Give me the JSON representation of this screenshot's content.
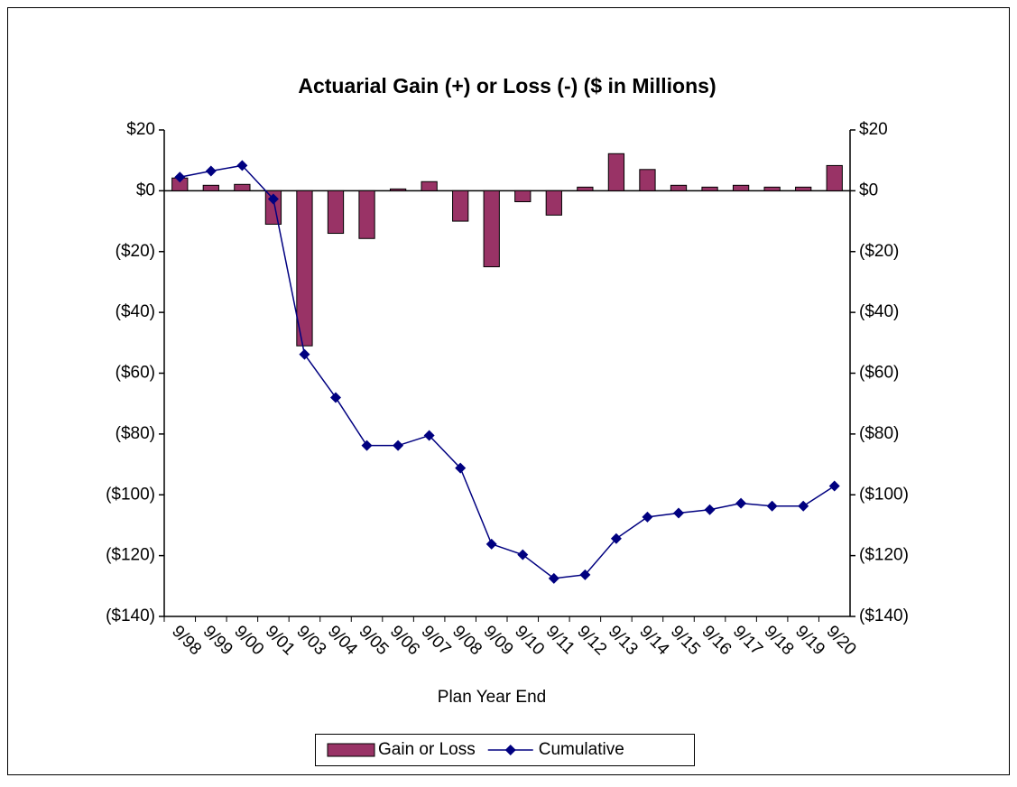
{
  "chart_data": {
    "type": "bar_line",
    "title": "Actuarial Gain (+) or Loss (-)  ($ in Millions)",
    "x_label": "Plan Year End",
    "categories": [
      "9/98",
      "9/99",
      "9/00",
      "9/01",
      "9/03",
      "9/04",
      "9/05",
      "9/06",
      "9/07",
      "9/08",
      "9/09",
      "9/10",
      "9/11",
      "9/12",
      "9/13",
      "9/14",
      "9/15",
      "9/16",
      "9/17",
      "9/18",
      "9/19",
      "9/20"
    ],
    "series": [
      {
        "name": "Gain or Loss",
        "type": "bar",
        "color": "#993366",
        "values": [
          4.2,
          1.8,
          2.1,
          -11,
          -51,
          -14,
          -15.7,
          0.6,
          3,
          -10,
          -25,
          -3.6,
          -8,
          1.2,
          12.2,
          7,
          1.8,
          1.2,
          1.8,
          1.2,
          1.2,
          8.3
        ]
      },
      {
        "name": "Cumulative",
        "type": "line",
        "color": "#000080",
        "axis": "y2",
        "values": [
          4.5,
          6.5,
          8.3,
          -2.7,
          -53.8,
          -68,
          -83.8,
          -83.8,
          -80.5,
          -91.2,
          -116.2,
          -119.7,
          -127.5,
          -126.3,
          -114.4,
          -107.3,
          -106,
          -104.9,
          -102.8,
          -103.7,
          -103.7,
          -97.1
        ]
      }
    ],
    "ylim": [
      -140,
      20
    ],
    "yticks": [
      {
        "value": 20,
        "label": "$20"
      },
      {
        "value": 0,
        "label": "$0"
      },
      {
        "value": -20,
        "label": "($20)"
      },
      {
        "value": -40,
        "label": "($40)"
      },
      {
        "value": -60,
        "label": "($60)"
      },
      {
        "value": -80,
        "label": "($80)"
      },
      {
        "value": -100,
        "label": "($100)"
      },
      {
        "value": -120,
        "label": "($120)"
      },
      {
        "value": -140,
        "label": "($140)"
      }
    ],
    "y2lim": [
      -140,
      20
    ],
    "y2ticks": [
      {
        "value": 20,
        "label": "$20"
      },
      {
        "value": 0,
        "label": "$0"
      },
      {
        "value": -20,
        "label": "($20)"
      },
      {
        "value": -40,
        "label": "($40)"
      },
      {
        "value": -60,
        "label": "($60)"
      },
      {
        "value": -80,
        "label": "($80)"
      },
      {
        "value": -100,
        "label": "($100)"
      },
      {
        "value": -120,
        "label": "($120)"
      },
      {
        "value": -140,
        "label": "($140)"
      }
    ],
    "grid": false,
    "legend": "bottom"
  }
}
